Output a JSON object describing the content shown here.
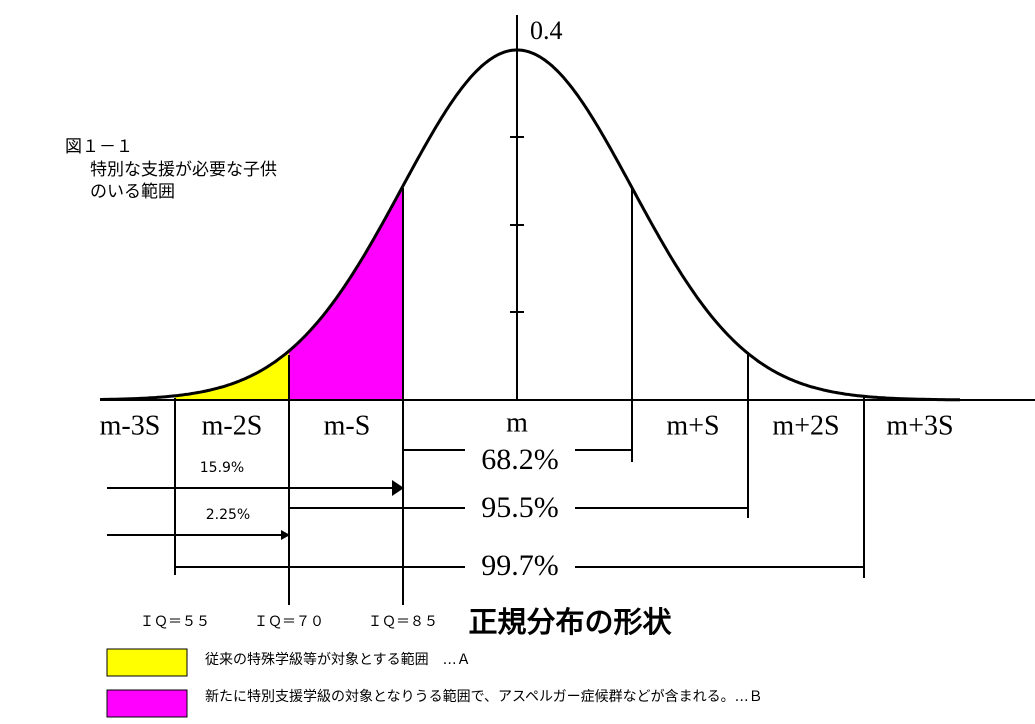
{
  "caption": {
    "number": "図１－１",
    "lines": [
      "特別な支援が必要な子供",
      "のいる範囲"
    ]
  },
  "peak_label": "0.4",
  "axis_labels": [
    "m-3S",
    "m-2S",
    "m-S",
    "m",
    "m+S",
    "m+2S",
    "m+3S"
  ],
  "ranges": [
    "68.2%",
    "95.5%",
    "99.7%"
  ],
  "tails": [
    "15.9%",
    "2.25%"
  ],
  "iq_labels": [
    "ＩＱ＝５５",
    "ＩＱ＝７０",
    "ＩＱ＝８５"
  ],
  "title": "正規分布の形状",
  "legend": [
    {
      "label": "従来の特殊学級等が対象とする範囲　…Ａ"
    },
    {
      "label": "新たに特別支援学級の対象となりうる範囲で、アスペルガー症候群などが含まれる。…Ｂ"
    }
  ]
}
